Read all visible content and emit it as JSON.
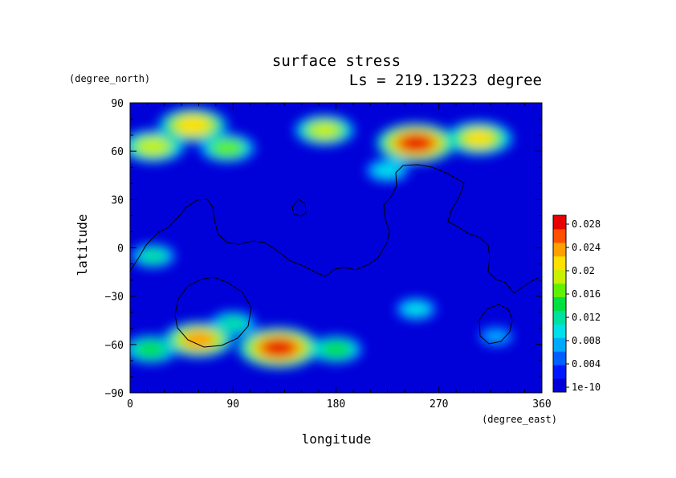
{
  "chart_data": {
    "type": "heatmap",
    "title": "surface stress",
    "subtitle": "Ls = 219.13223 degree",
    "xlabel": "longitude",
    "ylabel": "latitude",
    "x_unit": "(degree_east)",
    "y_unit": "(degree_north)",
    "xlim": [
      0,
      360
    ],
    "ylim": [
      -90,
      90
    ],
    "x_ticks": [
      "0",
      "90",
      "180",
      "270",
      "360"
    ],
    "y_ticks": [
      "90",
      "60",
      "30",
      "0",
      "−30",
      "−60",
      "−90"
    ],
    "colorbar": {
      "labels": [
        "0.028",
        "0.024",
        "0.02",
        "0.016",
        "0.012",
        "0.008",
        "0.004",
        "1e-10"
      ],
      "min": 0,
      "max": 0.03,
      "colors": [
        "#0000d8",
        "#0018ff",
        "#0060ff",
        "#00a8ff",
        "#00e0e8",
        "#00e0a0",
        "#00e040",
        "#60f000",
        "#c8f000",
        "#ffe000",
        "#ffa000",
        "#ff5000",
        "#e80000"
      ]
    },
    "features": [
      {
        "lon": 55,
        "lat": 76,
        "value": 0.023
      },
      {
        "lon": 20,
        "lat": 63,
        "value": 0.02
      },
      {
        "lon": 170,
        "lat": 73,
        "value": 0.019
      },
      {
        "lon": 250,
        "lat": 65,
        "value": 0.028
      },
      {
        "lon": 305,
        "lat": 68,
        "value": 0.022
      },
      {
        "lon": 85,
        "lat": 62,
        "value": 0.017
      },
      {
        "lon": 130,
        "lat": -62,
        "value": 0.029
      },
      {
        "lon": 60,
        "lat": -57,
        "value": 0.024
      },
      {
        "lon": 18,
        "lat": -63,
        "value": 0.016
      },
      {
        "lon": 180,
        "lat": -63,
        "value": 0.015
      },
      {
        "lon": 90,
        "lat": -47,
        "value": 0.013
      },
      {
        "lon": 250,
        "lat": -38,
        "value": 0.01
      },
      {
        "lon": 20,
        "lat": -5,
        "value": 0.012
      },
      {
        "lon": 225,
        "lat": 48,
        "value": 0.011
      },
      {
        "lon": 320,
        "lat": -55,
        "value": 0.007
      }
    ]
  }
}
